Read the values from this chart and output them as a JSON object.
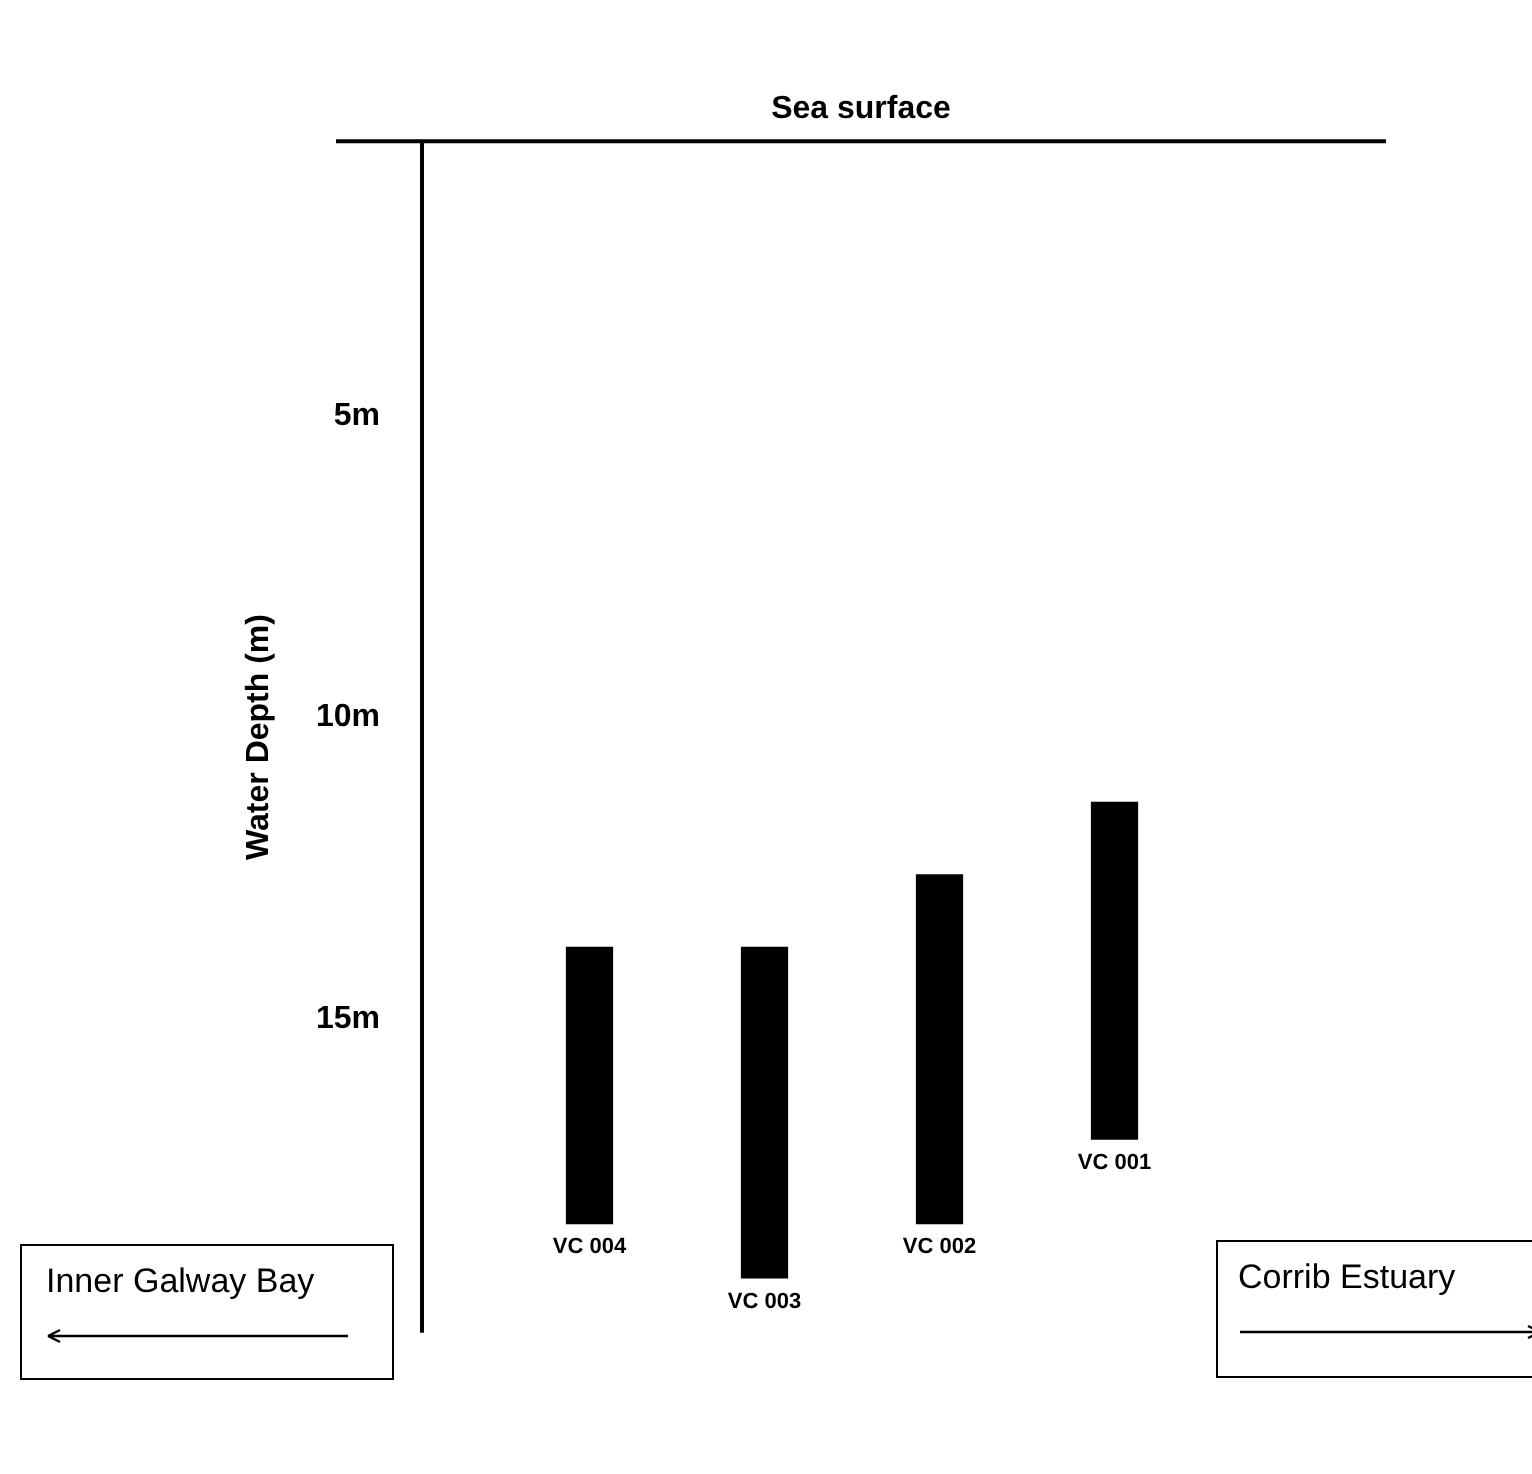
{
  "chart_data": {
    "type": "bar",
    "ylabel": "Water Depth (m)",
    "categories": [
      "VC 004",
      "VC 003",
      "VC 002",
      "VC 001"
    ],
    "base": [
      13.8,
      13.8,
      12.6,
      11.4
    ],
    "values": [
      4.6,
      5.5,
      5.8,
      5.6
    ],
    "color": "#000000",
    "ylim": [
      20.2,
      0.45
    ],
    "yticks": [
      {
        "value": 5,
        "label": "5m"
      },
      {
        "value": 10,
        "label": "10m"
      },
      {
        "value": 15,
        "label": "15m"
      }
    ],
    "ref_lines": [
      {
        "axis": "y",
        "value": 0.45,
        "label": "Sea surface"
      }
    ],
    "annotations": [
      "Inner Galway Bay",
      "Corrib Estuary"
    ],
    "grid": false,
    "legend": false
  }
}
